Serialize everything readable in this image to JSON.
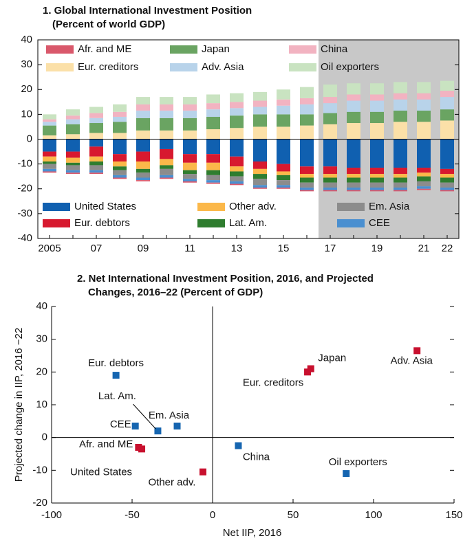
{
  "chart_data": [
    {
      "type": "stacked_bar",
      "title": [
        "1. Global International Investment Position",
        "(Percent of world GDP)"
      ],
      "categories": [
        "2005",
        null,
        "07",
        null,
        "09",
        null,
        "11",
        null,
        "13",
        null,
        "15",
        null,
        "17",
        null,
        "19",
        null,
        "21",
        "22"
      ],
      "shaded_from": "17",
      "ylim": [
        -40,
        40
      ],
      "yticks": [
        -40,
        -30,
        -20,
        -10,
        0,
        10,
        20,
        30,
        40
      ],
      "series": [
        {
          "name": "Afr. and ME",
          "color": "#d9586b",
          "values": [
            -0.5,
            -0.5,
            -0.5,
            -0.5,
            -0.5,
            -0.5,
            -0.5,
            -0.5,
            -0.5,
            -0.5,
            -0.5,
            -0.5,
            -0.5,
            -0.5,
            -0.5,
            -0.5,
            -0.5,
            -0.5
          ]
        },
        {
          "name": "Japan",
          "color": "#6aa462",
          "values": [
            4,
            4,
            4,
            4.5,
            5,
            5,
            5,
            5,
            5,
            5,
            5,
            4.5,
            4.5,
            4.5,
            4.5,
            4.5,
            4.5,
            4.5
          ]
        },
        {
          "name": "China",
          "color": "#f2b3c1",
          "values": [
            1,
            1.5,
            2,
            2,
            2.5,
            2.5,
            2.5,
            2.5,
            2.5,
            2.5,
            2.5,
            2.5,
            2.5,
            2.5,
            2.5,
            2.5,
            2.5,
            2.5
          ]
        },
        {
          "name": "Eur. creditors",
          "color": "#fbe0a8",
          "values": [
            1.5,
            2,
            2.5,
            2.5,
            3.5,
            3.5,
            3.5,
            4,
            4.5,
            5,
            5,
            5.5,
            6,
            6.5,
            6.5,
            7,
            7,
            7.5
          ]
        },
        {
          "name": "Adv. Asia",
          "color": "#b8d3ea",
          "values": [
            1.5,
            2,
            2,
            2,
            3,
            3,
            3,
            3,
            3,
            3,
            3.5,
            4,
            4,
            4.5,
            4.5,
            4.5,
            4.5,
            5
          ]
        },
        {
          "name": "Oil exporters",
          "color": "#c9e3c1",
          "values": [
            2,
            2.5,
            2.5,
            3,
            3,
            3,
            3,
            3.5,
            3.5,
            3.5,
            4,
            4.5,
            5,
            4.5,
            4.5,
            4.5,
            4.5,
            4
          ]
        },
        {
          "name": "United States",
          "color": "#1060b0",
          "values": [
            -5,
            -5,
            -3,
            -6,
            -5,
            -4,
            -6,
            -6,
            -7,
            -9,
            -10,
            -11,
            -11,
            -11.5,
            -11.5,
            -11.5,
            -11.5,
            -12
          ]
        },
        {
          "name": "Other adv.",
          "color": "#fbb84a",
          "values": [
            -2,
            -2,
            -2,
            -2,
            -3,
            -2.5,
            -3,
            -3,
            -2,
            -2,
            -1.5,
            -1.5,
            -1.5,
            -1.5,
            -1.5,
            -1.5,
            -1.5,
            -1.5
          ]
        },
        {
          "name": "Em. Asia",
          "color": "#8c8c8c",
          "values": [
            -2,
            -2,
            -2,
            -2,
            -2,
            -2.5,
            -2,
            -2,
            -2,
            -2.5,
            -2,
            -2,
            -2,
            -2,
            -2,
            -2,
            -2,
            -2
          ]
        },
        {
          "name": "Eur. debtors",
          "color": "#d7192f",
          "values": [
            -2,
            -2.5,
            -4,
            -3,
            -4,
            -4,
            -3.5,
            -3.5,
            -4,
            -3,
            -3,
            -3,
            -3,
            -2.5,
            -2.5,
            -2.5,
            -2,
            -2
          ]
        },
        {
          "name": "Lat. Am.",
          "color": "#2f7d2f",
          "values": [
            -1,
            -1,
            -1.5,
            -1.5,
            -1.5,
            -1.5,
            -1.5,
            -2,
            -2,
            -2,
            -2,
            -2,
            -2,
            -2,
            -2,
            -2,
            -2,
            -2
          ]
        },
        {
          "name": "CEE",
          "color": "#4a8fd0",
          "values": [
            -1,
            -1,
            -1,
            -1,
            -1,
            -1,
            -1,
            -1,
            -1,
            -1,
            -1,
            -1,
            -1,
            -1,
            -1,
            -1,
            -1,
            -1
          ]
        }
      ]
    },
    {
      "type": "scatter",
      "title": [
        "2. Net International Investment Position, 2016, and Projected",
        "Changes, 2016–22 (Percent of GDP)"
      ],
      "xlabel": "Net IIP, 2016",
      "ylabel": "Projected change in IIP, 2016 −22",
      "xlim": [
        -100,
        150
      ],
      "xticks": [
        -100,
        -50,
        0,
        50,
        100,
        150
      ],
      "ylim": [
        -20,
        40
      ],
      "yticks": [
        -20,
        -10,
        0,
        10,
        20,
        30,
        40
      ],
      "labels": [
        "Eur. debtors",
        "Lat. Am.",
        "CEE",
        "Em. Asia",
        "Afr. and ME",
        "United States",
        "Other adv.",
        "China",
        "Oil exporters",
        "Eur. creditors",
        "Japan",
        "Adv. Asia"
      ],
      "x": [
        -60,
        -34,
        -48,
        -22,
        -46,
        -44,
        -6,
        16,
        83,
        59,
        61,
        127
      ],
      "y": [
        19,
        2,
        3.5,
        3.5,
        -3,
        -3.5,
        -10.5,
        -2.5,
        -11,
        20,
        21,
        26.5
      ],
      "colors": [
        "#1565b0",
        "#1565b0",
        "#1565b0",
        "#1565b0",
        "#c8102e",
        "#c8102e",
        "#c8102e",
        "#1565b0",
        "#1565b0",
        "#c8102e",
        "#c8102e",
        "#c8102e"
      ]
    }
  ]
}
